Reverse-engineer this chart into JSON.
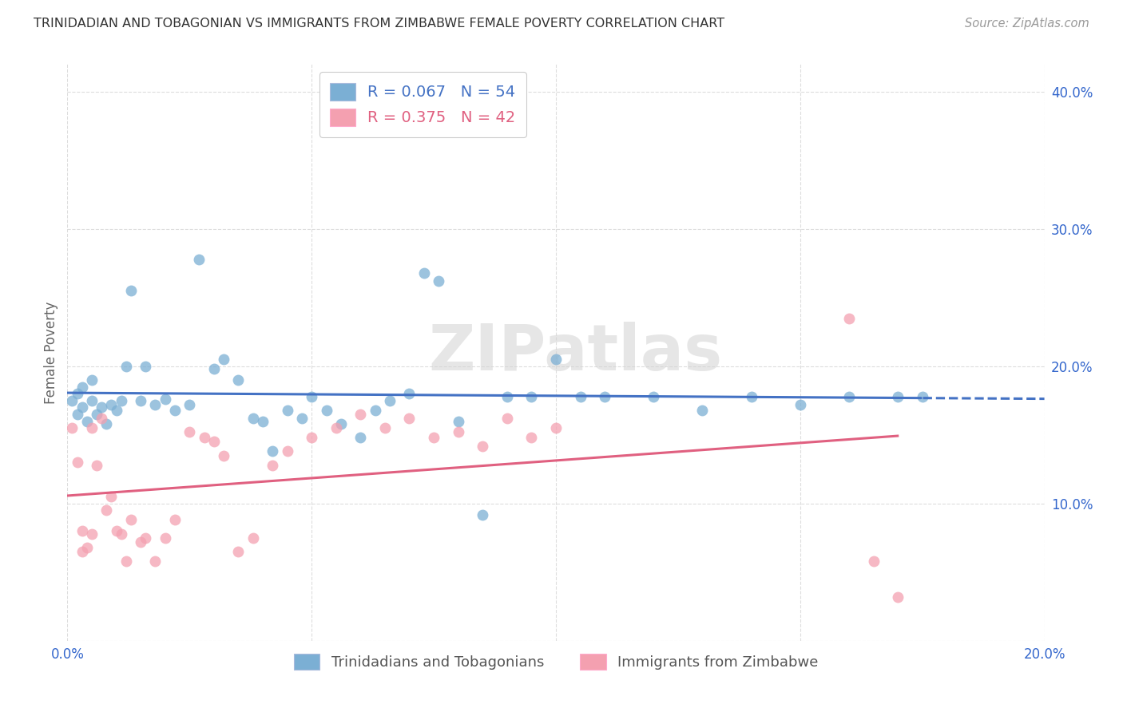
{
  "title": "TRINIDADIAN AND TOBAGONIAN VS IMMIGRANTS FROM ZIMBABWE FEMALE POVERTY CORRELATION CHART",
  "source": "Source: ZipAtlas.com",
  "ylabel": "Female Poverty",
  "xlim": [
    0.0,
    0.2
  ],
  "ylim": [
    0.0,
    0.42
  ],
  "xticks": [
    0.0,
    0.05,
    0.1,
    0.15,
    0.2
  ],
  "xtick_labels": [
    "0.0%",
    "",
    "",
    "",
    "20.0%"
  ],
  "yticks": [
    0.0,
    0.1,
    0.2,
    0.3,
    0.4
  ],
  "ytick_labels": [
    "",
    "10.0%",
    "20.0%",
    "30.0%",
    "40.0%"
  ],
  "blue_color": "#7BAFD4",
  "pink_color": "#F4A0B0",
  "blue_line_color": "#4472C4",
  "pink_line_color": "#E06080",
  "R_blue": 0.067,
  "N_blue": 54,
  "R_pink": 0.375,
  "N_pink": 42,
  "legend_label_blue": "Trinidadians and Tobagonians",
  "legend_label_pink": "Immigrants from Zimbabwe",
  "blue_scatter_x": [
    0.001,
    0.002,
    0.002,
    0.003,
    0.003,
    0.004,
    0.005,
    0.005,
    0.006,
    0.007,
    0.008,
    0.009,
    0.01,
    0.011,
    0.012,
    0.013,
    0.015,
    0.016,
    0.018,
    0.02,
    0.022,
    0.025,
    0.027,
    0.03,
    0.032,
    0.035,
    0.038,
    0.04,
    0.042,
    0.045,
    0.048,
    0.05,
    0.053,
    0.056,
    0.06,
    0.063,
    0.066,
    0.07,
    0.073,
    0.076,
    0.08,
    0.085,
    0.09,
    0.095,
    0.1,
    0.105,
    0.11,
    0.12,
    0.13,
    0.14,
    0.15,
    0.16,
    0.17,
    0.175
  ],
  "blue_scatter_y": [
    0.175,
    0.18,
    0.165,
    0.185,
    0.17,
    0.16,
    0.175,
    0.19,
    0.165,
    0.17,
    0.158,
    0.172,
    0.168,
    0.175,
    0.2,
    0.255,
    0.175,
    0.2,
    0.172,
    0.176,
    0.168,
    0.172,
    0.278,
    0.198,
    0.205,
    0.19,
    0.162,
    0.16,
    0.138,
    0.168,
    0.162,
    0.178,
    0.168,
    0.158,
    0.148,
    0.168,
    0.175,
    0.18,
    0.268,
    0.262,
    0.16,
    0.092,
    0.178,
    0.178,
    0.205,
    0.178,
    0.178,
    0.178,
    0.168,
    0.178,
    0.172,
    0.178,
    0.178,
    0.178
  ],
  "pink_scatter_x": [
    0.001,
    0.002,
    0.003,
    0.003,
    0.004,
    0.005,
    0.005,
    0.006,
    0.007,
    0.008,
    0.009,
    0.01,
    0.011,
    0.012,
    0.013,
    0.015,
    0.016,
    0.018,
    0.02,
    0.022,
    0.025,
    0.028,
    0.03,
    0.032,
    0.035,
    0.038,
    0.042,
    0.045,
    0.05,
    0.055,
    0.06,
    0.065,
    0.07,
    0.075,
    0.08,
    0.085,
    0.09,
    0.095,
    0.1,
    0.16,
    0.165,
    0.17
  ],
  "pink_scatter_y": [
    0.155,
    0.13,
    0.065,
    0.08,
    0.068,
    0.078,
    0.155,
    0.128,
    0.162,
    0.095,
    0.105,
    0.08,
    0.078,
    0.058,
    0.088,
    0.072,
    0.075,
    0.058,
    0.075,
    0.088,
    0.152,
    0.148,
    0.145,
    0.135,
    0.065,
    0.075,
    0.128,
    0.138,
    0.148,
    0.155,
    0.165,
    0.155,
    0.162,
    0.148,
    0.152,
    0.142,
    0.162,
    0.148,
    0.155,
    0.235,
    0.058,
    0.032
  ],
  "watermark": "ZIPatlas",
  "background_color": "#FFFFFF",
  "grid_color": "#DDDDDD"
}
